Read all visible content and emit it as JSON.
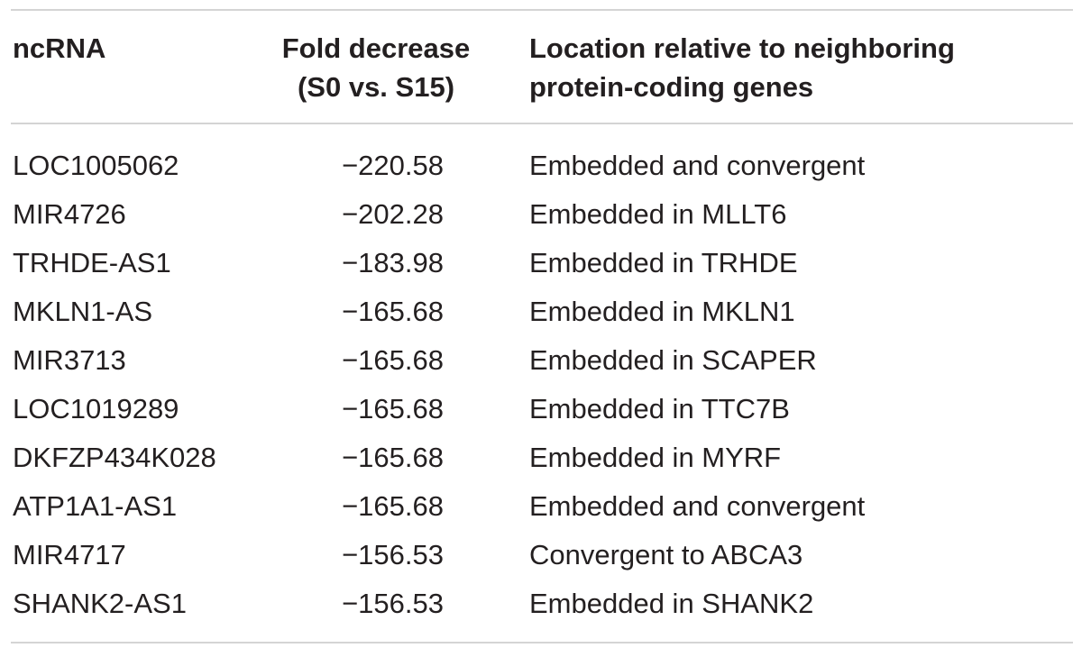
{
  "table": {
    "headers": {
      "ncrna": "ncRNA",
      "fold_decrease": [
        "Fold decrease",
        "(S0 vs. S15)"
      ],
      "location": [
        "Location relative to neighboring",
        "protein-coding genes"
      ]
    },
    "rows": [
      {
        "ncrna": "LOC1005062",
        "fold_decrease": "−220.58",
        "location": "Embedded and convergent"
      },
      {
        "ncrna": "MIR4726",
        "fold_decrease": "−202.28",
        "location": "Embedded in MLLT6"
      },
      {
        "ncrna": "TRHDE-AS1",
        "fold_decrease": "−183.98",
        "location": "Embedded in TRHDE"
      },
      {
        "ncrna": "MKLN1-AS",
        "fold_decrease": "−165.68",
        "location": "Embedded in MKLN1"
      },
      {
        "ncrna": "MIR3713",
        "fold_decrease": "−165.68",
        "location": "Embedded in SCAPER"
      },
      {
        "ncrna": "LOC1019289",
        "fold_decrease": "−165.68",
        "location": "Embedded in TTC7B"
      },
      {
        "ncrna": "DKFZP434K028",
        "fold_decrease": "−165.68",
        "location": "Embedded in MYRF"
      },
      {
        "ncrna": "ATP1A1-AS1",
        "fold_decrease": "−165.68",
        "location": "Embedded and convergent"
      },
      {
        "ncrna": "MIR4717",
        "fold_decrease": "−156.53",
        "location": "Convergent to ABCA3"
      },
      {
        "ncrna": "SHANK2-AS1",
        "fold_decrease": "−156.53",
        "location": "Embedded in SHANK2"
      }
    ]
  },
  "colors": {
    "text": "#231f20",
    "rule": "#d4d4d4"
  }
}
